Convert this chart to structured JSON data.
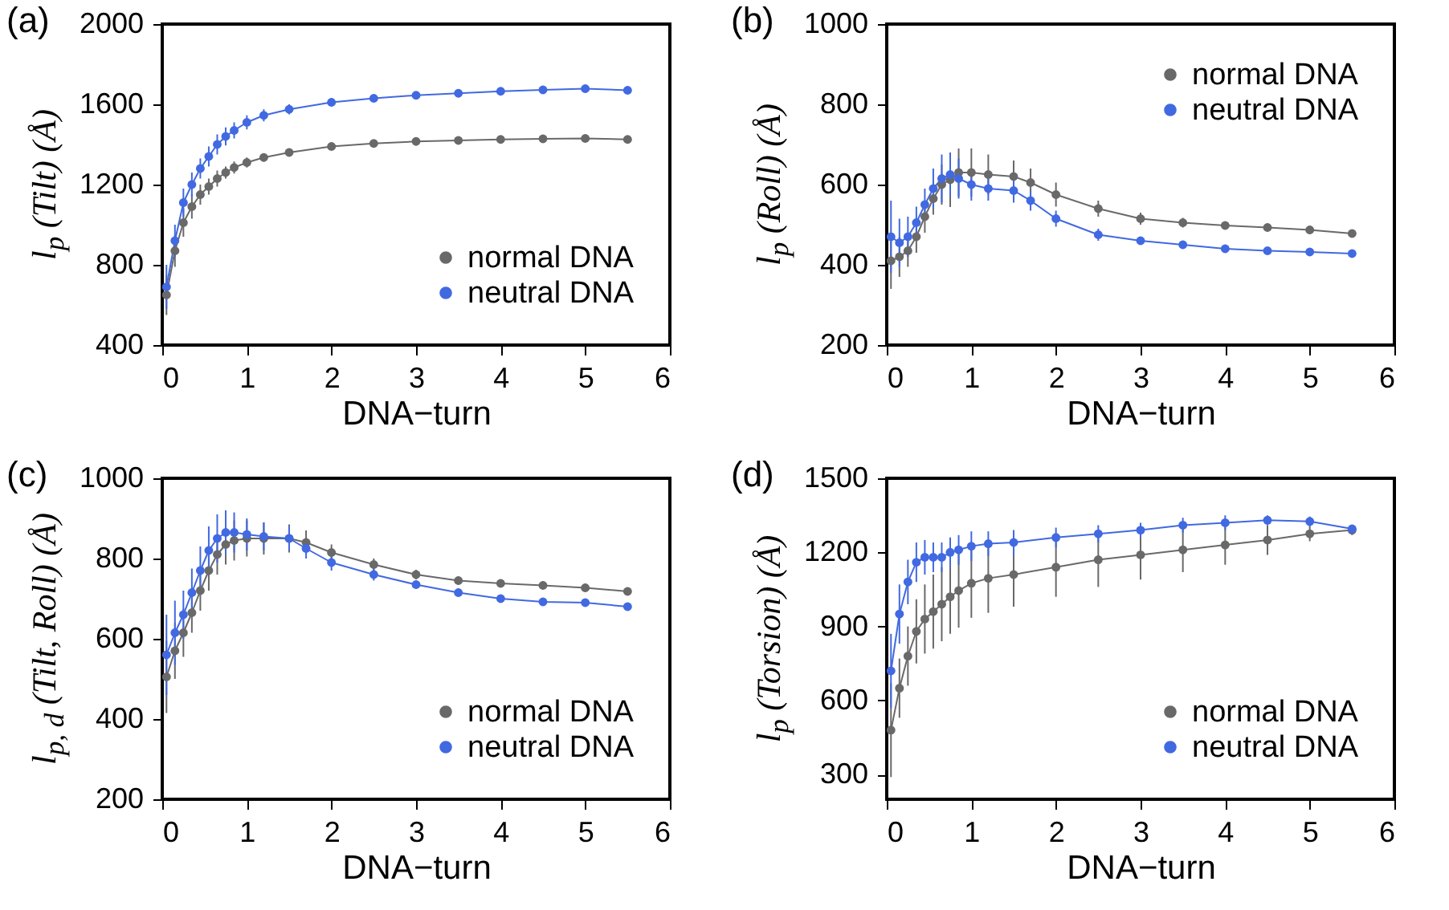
{
  "chart_data": [
    {
      "type": "line",
      "annotations": [
        "(a)"
      ],
      "xlabel": "DNA−turn",
      "ylabel": "l$_{p}$ (Tilt) (Å)",
      "xlim": [
        0,
        6
      ],
      "xticks": [
        0,
        1,
        2,
        3,
        4,
        5,
        6
      ],
      "ylim": [
        400,
        2000
      ],
      "yticks": [
        400,
        800,
        1200,
        1600,
        2000
      ],
      "marker": "circle",
      "grid": false,
      "legend": "bottom right",
      "x": [
        0.05,
        0.15,
        0.25,
        0.35,
        0.45,
        0.55,
        0.65,
        0.75,
        0.85,
        1.0,
        1.2,
        1.5,
        2.0,
        2.5,
        3.0,
        3.5,
        4.0,
        4.5,
        5.0,
        5.5
      ],
      "series": [
        {
          "name": "normal DNA",
          "color": "#696969",
          "values": [
            650,
            870,
            1010,
            1090,
            1150,
            1190,
            1230,
            1260,
            1285,
            1310,
            1335,
            1360,
            1390,
            1405,
            1415,
            1420,
            1425,
            1428,
            1430,
            1425
          ],
          "errors": [
            100,
            80,
            70,
            60,
            50,
            40,
            40,
            30,
            30,
            25,
            20,
            20,
            15,
            15,
            15,
            15,
            15,
            15,
            15,
            15
          ]
        },
        {
          "name": "neutral DNA",
          "color": "#4169e1",
          "values": [
            690,
            920,
            1110,
            1200,
            1280,
            1340,
            1400,
            1440,
            1470,
            1510,
            1545,
            1575,
            1610,
            1630,
            1645,
            1655,
            1665,
            1672,
            1678,
            1670
          ],
          "errors": [
            110,
            80,
            70,
            60,
            50,
            50,
            50,
            45,
            40,
            35,
            30,
            25,
            20,
            15,
            15,
            15,
            15,
            15,
            15,
            15
          ]
        }
      ]
    },
    {
      "type": "line",
      "annotations": [
        "(b)"
      ],
      "xlabel": "DNA−turn",
      "ylabel": "l$_{p}$ (Roll) (Å)",
      "xlim": [
        0,
        6
      ],
      "xticks": [
        0,
        1,
        2,
        3,
        4,
        5,
        6
      ],
      "ylim": [
        200,
        1000
      ],
      "yticks": [
        200,
        400,
        600,
        800,
        1000
      ],
      "marker": "circle",
      "grid": false,
      "legend": "top right",
      "x": [
        0.05,
        0.15,
        0.25,
        0.35,
        0.45,
        0.55,
        0.65,
        0.75,
        0.85,
        1.0,
        1.2,
        1.5,
        1.7,
        2.0,
        2.5,
        3.0,
        3.5,
        4.0,
        4.5,
        5.0,
        5.5
      ],
      "series": [
        {
          "name": "normal DNA",
          "color": "#696969",
          "values": [
            410,
            420,
            435,
            470,
            520,
            565,
            600,
            612,
            630,
            630,
            625,
            620,
            605,
            575,
            540,
            515,
            505,
            498,
            493,
            487,
            478
          ],
          "errors": [
            70,
            50,
            40,
            40,
            40,
            40,
            50,
            68,
            60,
            60,
            50,
            40,
            35,
            30,
            20,
            15,
            12,
            10,
            10,
            10,
            10
          ]
        },
        {
          "name": "neutral DNA",
          "color": "#4169e1",
          "values": [
            470,
            455,
            470,
            505,
            550,
            590,
            615,
            625,
            615,
            600,
            590,
            585,
            560,
            515,
            475,
            460,
            450,
            440,
            435,
            432,
            428
          ],
          "errors": [
            90,
            60,
            50,
            40,
            40,
            50,
            60,
            55,
            50,
            40,
            30,
            30,
            25,
            20,
            15,
            10,
            8,
            6,
            5,
            5,
            5
          ]
        }
      ]
    },
    {
      "type": "line",
      "annotations": [
        "(c)"
      ],
      "xlabel": "DNA−turn",
      "ylabel": "l$_{p, d}$ (Tilt, Roll) (Å)",
      "xlim": [
        0,
        6
      ],
      "xticks": [
        0,
        1,
        2,
        3,
        4,
        5,
        6
      ],
      "ylim": [
        200,
        1000
      ],
      "yticks": [
        200,
        400,
        600,
        800,
        1000
      ],
      "marker": "circle",
      "grid": false,
      "legend": "bottom right",
      "x": [
        0.05,
        0.15,
        0.25,
        0.35,
        0.45,
        0.55,
        0.65,
        0.75,
        0.85,
        1.0,
        1.2,
        1.5,
        1.7,
        2.0,
        2.5,
        3.0,
        3.5,
        4.0,
        4.5,
        5.0,
        5.5
      ],
      "series": [
        {
          "name": "normal DNA",
          "color": "#696969",
          "values": [
            505,
            570,
            615,
            665,
            720,
            770,
            810,
            835,
            845,
            850,
            850,
            850,
            840,
            815,
            785,
            760,
            745,
            738,
            733,
            727,
            718
          ],
          "errors": [
            90,
            70,
            60,
            50,
            50,
            50,
            50,
            50,
            50,
            45,
            40,
            35,
            30,
            20,
            15,
            12,
            10,
            10,
            10,
            10,
            10
          ]
        },
        {
          "name": "neutral DNA",
          "color": "#4169e1",
          "values": [
            560,
            615,
            660,
            715,
            770,
            820,
            850,
            865,
            865,
            860,
            855,
            850,
            825,
            790,
            760,
            735,
            715,
            700,
            692,
            690,
            680
          ],
          "errors": [
            100,
            80,
            60,
            60,
            60,
            60,
            60,
            55,
            50,
            40,
            35,
            30,
            25,
            20,
            15,
            10,
            10,
            8,
            5,
            5,
            5
          ]
        }
      ]
    },
    {
      "type": "line",
      "annotations": [
        "(d)"
      ],
      "xlabel": "DNA−turn",
      "ylabel": "l$_{p}$ (Torsion) (Å)",
      "xlim": [
        0,
        6
      ],
      "xticks": [
        0,
        1,
        2,
        3,
        4,
        5,
        6
      ],
      "ylim": [
        200,
        1500
      ],
      "yticks": [
        300,
        600,
        900,
        1200,
        1500
      ],
      "marker": "circle",
      "grid": false,
      "legend": "bottom right",
      "x": [
        0.05,
        0.15,
        0.25,
        0.35,
        0.45,
        0.55,
        0.65,
        0.75,
        0.85,
        1.0,
        1.2,
        1.5,
        2.0,
        2.5,
        3.0,
        3.5,
        4.0,
        4.5,
        5.0,
        5.5
      ],
      "series": [
        {
          "name": "normal DNA",
          "color": "#696969",
          "values": [
            480,
            650,
            780,
            880,
            930,
            960,
            990,
            1020,
            1045,
            1075,
            1095,
            1110,
            1140,
            1170,
            1190,
            1210,
            1230,
            1250,
            1275,
            1290
          ],
          "errors": [
            190,
            120,
            120,
            130,
            140,
            150,
            150,
            150,
            150,
            140,
            140,
            130,
            120,
            110,
            100,
            90,
            80,
            60,
            30,
            20
          ]
        },
        {
          "name": "neutral DNA",
          "color": "#4169e1",
          "values": [
            720,
            950,
            1080,
            1160,
            1180,
            1180,
            1180,
            1200,
            1210,
            1225,
            1235,
            1240,
            1260,
            1275,
            1290,
            1310,
            1320,
            1330,
            1325,
            1295
          ],
          "errors": [
            150,
            120,
            90,
            80,
            70,
            60,
            60,
            60,
            60,
            60,
            50,
            50,
            40,
            35,
            30,
            30,
            30,
            20,
            20,
            15
          ]
        }
      ]
    }
  ]
}
